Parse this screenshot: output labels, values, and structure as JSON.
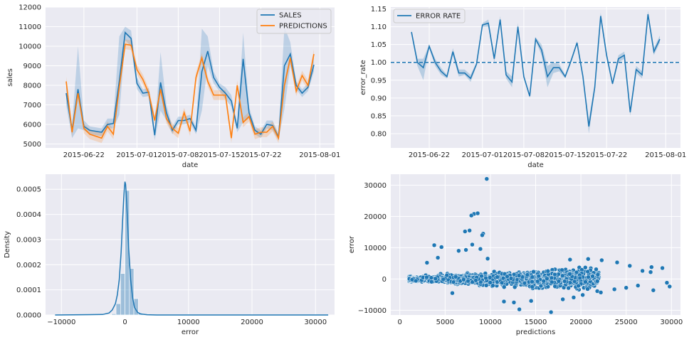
{
  "chart_data": [
    {
      "type": "line",
      "xlabel": "date",
      "ylabel": "sales",
      "x_ticks": [
        "2015-06-22",
        "2015-07-01",
        "2015-07-08",
        "2015-07-15",
        "2015-07-22",
        "2015-08-01"
      ],
      "x_tick_days": [
        3,
        12,
        19,
        26,
        33,
        43
      ],
      "ylim": [
        4800,
        12000
      ],
      "y_ticks": [
        5000,
        6000,
        7000,
        8000,
        9000,
        10000,
        11000,
        12000
      ],
      "grid": true,
      "legend_position": "top-right",
      "colors": {
        "SALES": "#1f77b4",
        "PREDICTIONS": "#ff7f0e"
      },
      "x_days": [
        0,
        1,
        2,
        3,
        4,
        5,
        6,
        7,
        8,
        9,
        10,
        11,
        12,
        13,
        14,
        15,
        16,
        17,
        18,
        19,
        20,
        21,
        22,
        23,
        24,
        25,
        26,
        27,
        28,
        29,
        30,
        31,
        32,
        33,
        34,
        35,
        36,
        37,
        38,
        39,
        40,
        41,
        42
      ],
      "series": [
        {
          "name": "SALES",
          "values": [
            7600,
            5700,
            7800,
            5900,
            5700,
            5650,
            5600,
            6000,
            6050,
            8200,
            10700,
            10400,
            8100,
            7600,
            7650,
            5450,
            8150,
            6600,
            5700,
            6200,
            6200,
            6300,
            5700,
            8700,
            9750,
            8400,
            7900,
            7600,
            7200,
            5800,
            9350,
            6600,
            5700,
            5500,
            6000,
            5950,
            5350,
            9000,
            9600,
            8000,
            7600,
            7900,
            9050
          ],
          "lower": [
            7000,
            5300,
            5800,
            5700,
            5500,
            5450,
            5400,
            5800,
            5800,
            6500,
            10300,
            10000,
            7800,
            7400,
            7450,
            5200,
            6700,
            6200,
            5500,
            6000,
            6000,
            6100,
            5500,
            6700,
            9000,
            8100,
            7700,
            7300,
            6900,
            5600,
            6100,
            6300,
            5500,
            5300,
            5800,
            5700,
            5200,
            6800,
            9000,
            7800,
            7400,
            7700,
            8700
          ],
          "upper": [
            8200,
            6000,
            10000,
            6200,
            5900,
            5850,
            5800,
            6300,
            6300,
            10500,
            11000,
            10800,
            8400,
            7800,
            7850,
            5700,
            9700,
            7000,
            5900,
            6400,
            6400,
            6500,
            5900,
            10900,
            10500,
            8700,
            8100,
            7900,
            7500,
            6000,
            10700,
            6900,
            5900,
            5700,
            6200,
            6200,
            5500,
            11000,
            10200,
            8200,
            7800,
            8100,
            9400
          ]
        },
        {
          "name": "PREDICTIONS",
          "values": [
            8200,
            5600,
            7600,
            5800,
            5500,
            5400,
            5300,
            5900,
            5500,
            7900,
            10100,
            10050,
            8800,
            8300,
            7600,
            6200,
            7800,
            6300,
            5800,
            5550,
            6600,
            5650,
            8400,
            9400,
            8200,
            7500,
            7500,
            7500,
            5300,
            8000,
            6100,
            6400,
            5500,
            5600,
            5600,
            5900,
            5300,
            8000,
            9400,
            7700,
            8500,
            8000,
            9600
          ]
        }
      ]
    },
    {
      "type": "line",
      "xlabel": "date",
      "ylabel": "error_rate",
      "x_ticks": [
        "2015-06-22",
        "2015-07-01",
        "2015-07-08",
        "2015-07-15",
        "2015-07-22",
        "2015-08-01"
      ],
      "x_tick_days": [
        3,
        12,
        19,
        26,
        33,
        43
      ],
      "ylim": [
        0.76,
        1.155
      ],
      "y_ticks": [
        0.8,
        0.85,
        0.9,
        0.95,
        1.0,
        1.05,
        1.1,
        1.15
      ],
      "y_tick_labels": [
        "0.80",
        "0.85",
        "0.90",
        "0.95",
        "1.00",
        "1.05",
        "1.10",
        "1.15"
      ],
      "grid": true,
      "legend_position": "top-left",
      "hline": 1.0,
      "colors": {
        "ERROR RATE": "#1f77b4"
      },
      "x_days": [
        0,
        1,
        2,
        3,
        4,
        5,
        6,
        7,
        8,
        9,
        10,
        11,
        12,
        13,
        14,
        15,
        16,
        17,
        18,
        19,
        20,
        21,
        22,
        23,
        24,
        25,
        26,
        27,
        28,
        29,
        30,
        31,
        32,
        33,
        34,
        35,
        36,
        37,
        38,
        39,
        40,
        41,
        42
      ],
      "series": [
        {
          "name": "ERROR RATE",
          "values": [
            1.085,
            1.0,
            0.985,
            1.045,
            1.0,
            0.975,
            0.96,
            1.03,
            0.97,
            0.97,
            0.955,
            0.995,
            1.105,
            1.11,
            1.01,
            1.12,
            0.965,
            0.945,
            1.1,
            0.96,
            0.905,
            1.065,
            1.035,
            0.96,
            0.985,
            0.985,
            0.96,
            1.005,
            1.055,
            0.96,
            0.82,
            0.93,
            1.13,
            1.02,
            0.94,
            1.01,
            1.02,
            0.86,
            0.98,
            0.965,
            1.135,
            1.03,
            1.065
          ],
          "lower": [
            1.08,
            0.99,
            0.95,
            1.04,
            0.99,
            0.965,
            0.955,
            1.02,
            0.96,
            0.965,
            0.945,
            0.99,
            1.1,
            1.1,
            1.0,
            1.11,
            0.955,
            0.93,
            1.09,
            0.955,
            0.9,
            1.06,
            1.02,
            0.93,
            0.97,
            0.975,
            0.955,
            1.0,
            1.05,
            0.955,
            0.8,
            0.92,
            1.12,
            1.01,
            0.935,
            1.0,
            1.01,
            0.85,
            0.97,
            0.955,
            1.125,
            1.02,
            1.055
          ],
          "upper": [
            1.09,
            1.01,
            1.01,
            1.05,
            1.01,
            0.985,
            0.965,
            1.04,
            0.98,
            0.98,
            0.965,
            1.0,
            1.11,
            1.12,
            1.02,
            1.13,
            0.975,
            0.96,
            1.11,
            0.965,
            0.91,
            1.07,
            1.05,
            0.99,
            1.0,
            0.995,
            0.965,
            1.01,
            1.06,
            0.965,
            0.84,
            0.94,
            1.14,
            1.03,
            0.945,
            1.02,
            1.03,
            0.87,
            0.99,
            0.975,
            1.145,
            1.04,
            1.075
          ]
        }
      ]
    },
    {
      "type": "histogram",
      "xlabel": "error",
      "ylabel": "Density",
      "xlim": [
        -12500,
        33000
      ],
      "ylim": [
        0,
        0.00056
      ],
      "x_ticks": [
        -10000,
        0,
        10000,
        20000,
        30000
      ],
      "x_tick_labels": [
        "−10000",
        "0",
        "10000",
        "20000",
        "30000"
      ],
      "y_ticks": [
        0,
        0.0001,
        0.0002,
        0.0003,
        0.0004,
        0.0005
      ],
      "y_tick_labels": [
        "0.0000",
        "0.0001",
        "0.0002",
        "0.0003",
        "0.0004",
        "0.0005"
      ],
      "grid": true,
      "colors": {
        "hist": "#1f77b4",
        "kde": "#1f77b4"
      },
      "bins": [
        {
          "x0": -2100,
          "x1": -1400,
          "density": 5e-06
        },
        {
          "x0": -1400,
          "x1": -700,
          "density": 4.5e-05
        },
        {
          "x0": -700,
          "x1": 0,
          "density": 0.000165
        },
        {
          "x0": 0,
          "x1": 700,
          "density": 0.000495
        },
        {
          "x0": 700,
          "x1": 1400,
          "density": 0.000185
        },
        {
          "x0": 1400,
          "x1": 2100,
          "density": 6.5e-05
        },
        {
          "x0": 2100,
          "x1": 2800,
          "density": 8e-06
        }
      ],
      "kde_x": [
        -11000,
        -3500,
        -2500,
        -2000,
        -1500,
        -1200,
        -900,
        -600,
        -400,
        -200,
        -100,
        0,
        100,
        200,
        400,
        600,
        900,
        1200,
        1500,
        2000,
        2500,
        3500,
        5000,
        32000
      ],
      "kde_y": [
        0,
        2e-06,
        8e-06,
        2e-05,
        4.5e-05,
        8e-05,
        0.00014,
        0.00025,
        0.00036,
        0.00046,
        0.0005,
        0.00053,
        0.00052,
        0.00048,
        0.00038,
        0.00026,
        0.00014,
        7e-05,
        3e-05,
        1e-05,
        4e-06,
        1e-06,
        0,
        0
      ]
    },
    {
      "type": "scatter",
      "xlabel": "predictions",
      "ylabel": "error",
      "xlim": [
        -1000,
        31000
      ],
      "ylim": [
        -11500,
        33500
      ],
      "x_ticks": [
        0,
        5000,
        10000,
        15000,
        20000,
        25000,
        30000
      ],
      "y_ticks": [
        -10000,
        0,
        10000,
        20000,
        30000
      ],
      "y_tick_labels": [
        "−10000",
        "0",
        "10000",
        "20000",
        "30000"
      ],
      "grid": true,
      "colors": {
        "points": "#1f77b4"
      },
      "outliers": [
        [
          9600,
          32000
        ],
        [
          8200,
          20800
        ],
        [
          8600,
          21000
        ],
        [
          7900,
          20300
        ],
        [
          7200,
          15200
        ],
        [
          7700,
          15500
        ],
        [
          9200,
          14500
        ],
        [
          9100,
          14000
        ],
        [
          3800,
          10800
        ],
        [
          4600,
          10200
        ],
        [
          8000,
          11000
        ],
        [
          7300,
          9300
        ],
        [
          6500,
          9000
        ],
        [
          8900,
          9600
        ],
        [
          9700,
          6500
        ],
        [
          13200,
          -9700
        ],
        [
          16700,
          -10600
        ],
        [
          12600,
          -7500
        ],
        [
          14500,
          -7000
        ],
        [
          18000,
          -6500
        ],
        [
          28000,
          -3600
        ],
        [
          27800,
          3800
        ],
        [
          29500,
          -1200
        ],
        [
          29800,
          -2400
        ],
        [
          29000,
          3500
        ],
        [
          26800,
          2600
        ],
        [
          25400,
          4200
        ],
        [
          24000,
          5300
        ],
        [
          22300,
          6000
        ],
        [
          20800,
          6400
        ],
        [
          18800,
          6200
        ],
        [
          26300,
          -2100
        ],
        [
          25000,
          -2800
        ],
        [
          23700,
          -3300
        ],
        [
          22200,
          -4300
        ],
        [
          20200,
          -5100
        ],
        [
          19200,
          -5900
        ],
        [
          27700,
          2200
        ],
        [
          11500,
          -7200
        ],
        [
          5800,
          -4500
        ],
        [
          4200,
          6800
        ],
        [
          3000,
          5200
        ]
      ]
    }
  ]
}
